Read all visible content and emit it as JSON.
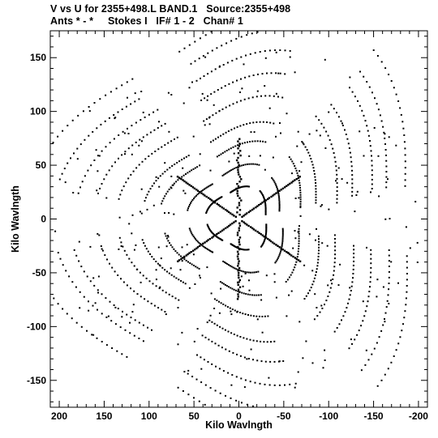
{
  "header": {
    "line1": "V vs U for 2355+498.L BAND.1   Source:2355+498",
    "line2": "Ants * - *     Stokes I   IF# 1 - 2   Chan# 1"
  },
  "chart_data": {
    "type": "scatter",
    "title": "V vs U for 2355+498.L BAND.1   Source:2355+498",
    "subtitle": "Ants * - *     Stokes I   IF# 1 - 2   Chan# 1",
    "xlabel": "Kilo Wavlngth",
    "ylabel": "Kilo Wavlngth",
    "xlim": [
      210,
      -210
    ],
    "ylim": [
      -175,
      175
    ],
    "x_reversed": true,
    "x_ticks": [
      200,
      150,
      100,
      50,
      0,
      -50,
      -100,
      -150,
      -200
    ],
    "y_ticks": [
      150,
      100,
      50,
      0,
      -50,
      -100,
      -150
    ],
    "grid": false,
    "legend": "none",
    "point_color": "#000000",
    "description_of_data": "uv-coverage of a Y-shaped interferometer array: dense radial arms at position angles ~0, ~120 and ~240 degrees plus six-fold symmetric elliptical tracks, extending to about |u| 200 and |v| 165 kilo-wavelengths",
    "arm_extent_kl": 75,
    "outer_extent_kl": 200
  }
}
